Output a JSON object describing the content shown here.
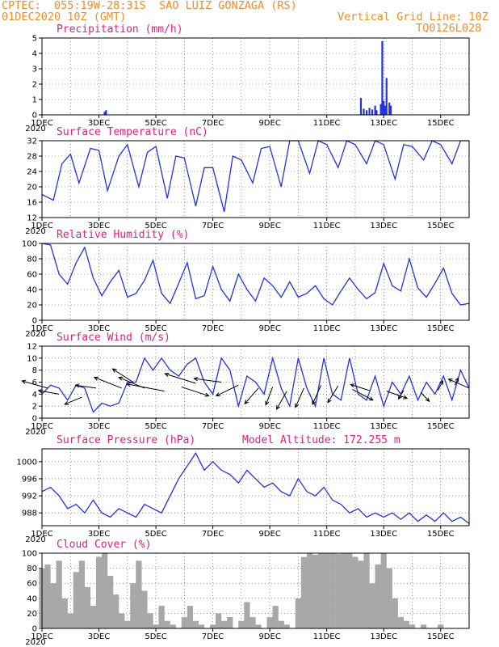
{
  "header": {
    "line1_left": "CPTEC:  055:19W-28:31S  SAO LUIZ GONZAGA (RS)",
    "line2_left": "01DEC2020 10Z (GMT)",
    "line2_right": "Vertical Grid Line: 10Z",
    "line3_right": "TQ0126L028"
  },
  "x_axis": {
    "ticks": [
      "1DEC",
      "3DEC",
      "5DEC",
      "7DEC",
      "9DEC",
      "11DEC",
      "13DEC",
      "15DEC"
    ],
    "year_label": "2020"
  },
  "colors": {
    "series": "#2233dd",
    "title": "#e0207f",
    "header": "#f28c28",
    "cloud": "#a8a8a8",
    "arrow": "#000000"
  },
  "chart_data": [
    {
      "type": "bar",
      "title": "Precipitation (mm/h)",
      "ylim": [
        0,
        5
      ],
      "yticks": [
        0,
        1,
        2,
        3,
        4,
        5
      ],
      "x_unit": "days since 01DEC2020 10Z",
      "xlim": [
        0,
        15
      ],
      "x": [
        2.2,
        2.25,
        11.2,
        11.3,
        11.4,
        11.5,
        11.6,
        11.7,
        11.75,
        11.9,
        11.95,
        12.0,
        12.05,
        12.1,
        12.2,
        12.25
      ],
      "values": [
        0.2,
        0.3,
        1.1,
        0.4,
        0.3,
        0.45,
        0.35,
        0.6,
        0.3,
        0.7,
        4.8,
        0.9,
        0.6,
        2.4,
        0.8,
        0.6
      ]
    },
    {
      "type": "line",
      "title": "Surface Temperature (nC)",
      "ylim": [
        12,
        32
      ],
      "yticks": [
        12,
        16,
        20,
        24,
        28,
        32
      ],
      "xlim": [
        0,
        15
      ],
      "x": [
        0,
        0.4,
        0.7,
        1.0,
        1.3,
        1.7,
        2.0,
        2.3,
        2.7,
        3.0,
        3.4,
        3.7,
        4.0,
        4.4,
        4.7,
        5.0,
        5.4,
        5.7,
        6.0,
        6.4,
        6.7,
        7.0,
        7.4,
        7.7,
        8.0,
        8.4,
        8.7,
        9.0,
        9.4,
        9.7,
        10.0,
        10.4,
        10.7,
        11.0,
        11.4,
        11.7,
        12.0,
        12.4,
        12.7,
        13.0,
        13.4,
        13.7,
        14.0,
        14.4,
        14.7,
        15.0
      ],
      "values": [
        18,
        16.5,
        26,
        28.5,
        21,
        30,
        29.5,
        19,
        28,
        31,
        20,
        29,
        30.5,
        17,
        28,
        27.5,
        15,
        25,
        25,
        13.5,
        28,
        27,
        21,
        30,
        30.5,
        20,
        32,
        32,
        23.5,
        32,
        31,
        25,
        32,
        31,
        26,
        32,
        31,
        22,
        31,
        30.5,
        27,
        32,
        31,
        26,
        32,
        32
      ]
    },
    {
      "type": "line",
      "title": "Relative Humidity (%)",
      "ylim": [
        0,
        100
      ],
      "yticks": [
        0,
        20,
        40,
        60,
        80,
        100
      ],
      "xlim": [
        0,
        15
      ],
      "x": [
        0,
        0.3,
        0.6,
        0.9,
        1.2,
        1.5,
        1.8,
        2.1,
        2.4,
        2.7,
        3.0,
        3.3,
        3.6,
        3.9,
        4.2,
        4.5,
        4.8,
        5.1,
        5.4,
        5.7,
        6.0,
        6.3,
        6.6,
        6.9,
        7.2,
        7.5,
        7.8,
        8.1,
        8.4,
        8.7,
        9.0,
        9.3,
        9.6,
        9.9,
        10.2,
        10.5,
        10.8,
        11.1,
        11.4,
        11.7,
        12.0,
        12.3,
        12.6,
        12.9,
        13.2,
        13.5,
        13.8,
        14.1,
        14.4,
        14.7,
        15.0
      ],
      "values": [
        100,
        98,
        60,
        47,
        75,
        95,
        55,
        32,
        50,
        65,
        30,
        35,
        52,
        78,
        35,
        22,
        48,
        75,
        28,
        32,
        70,
        40,
        25,
        60,
        40,
        25,
        55,
        45,
        30,
        50,
        30,
        35,
        45,
        28,
        20,
        38,
        55,
        40,
        28,
        36,
        74,
        45,
        38,
        80,
        42,
        30,
        48,
        68,
        35,
        20,
        22
      ]
    },
    {
      "type": "line",
      "title": "Surface Wind (m/s)",
      "ylim": [
        0,
        12
      ],
      "yticks": [
        0,
        2,
        4,
        6,
        8,
        10,
        12
      ],
      "xlim": [
        0,
        15
      ],
      "x": [
        0,
        0.3,
        0.6,
        0.9,
        1.2,
        1.5,
        1.8,
        2.1,
        2.4,
        2.7,
        3.0,
        3.3,
        3.6,
        3.9,
        4.2,
        4.5,
        4.8,
        5.1,
        5.4,
        5.7,
        6.0,
        6.3,
        6.6,
        6.9,
        7.2,
        7.5,
        7.8,
        8.1,
        8.4,
        8.7,
        9.0,
        9.3,
        9.6,
        9.9,
        10.2,
        10.5,
        10.8,
        11.1,
        11.4,
        11.7,
        12.0,
        12.3,
        12.6,
        12.9,
        13.2,
        13.5,
        13.8,
        14.1,
        14.4,
        14.7,
        15.0
      ],
      "values": [
        4,
        5.5,
        5,
        3,
        5.5,
        5,
        1,
        2.5,
        2,
        2.5,
        6,
        6,
        10,
        8,
        10,
        8,
        7,
        9,
        10,
        6,
        4,
        10,
        8,
        2,
        7,
        6,
        4,
        10,
        5,
        2,
        10,
        5,
        2,
        10,
        4,
        3,
        10,
        4,
        3,
        7,
        2,
        6,
        4,
        7,
        3,
        6,
        4,
        7,
        3,
        8,
        5
      ],
      "arrows": [
        [
          0.2,
          5,
          -1.5,
          1.2
        ],
        [
          0.6,
          4,
          -1.2,
          0.6
        ],
        [
          1.4,
          3.5,
          -1.0,
          -1.2
        ],
        [
          1.9,
          5,
          -1.2,
          0.5
        ],
        [
          2.8,
          5,
          -1.6,
          1.8
        ],
        [
          3.2,
          6,
          -1.2,
          2.2
        ],
        [
          3.6,
          5,
          -1.5,
          1.8
        ],
        [
          4.3,
          4.5,
          -2.2,
          1.2
        ],
        [
          4.9,
          5.2,
          1.6,
          -1.5
        ],
        [
          5.4,
          5.8,
          -1.8,
          1.6
        ],
        [
          6.3,
          6,
          -1.6,
          0.6
        ],
        [
          6.9,
          5.5,
          -1.3,
          -1.8
        ],
        [
          7.6,
          5,
          -0.8,
          -2.6
        ],
        [
          8.1,
          5.2,
          -0.4,
          -3
        ],
        [
          8.6,
          4.5,
          -0.6,
          -3
        ],
        [
          9.2,
          5,
          -0.5,
          -3.2
        ],
        [
          9.8,
          5.5,
          -0.5,
          -3.2
        ],
        [
          10.4,
          5.4,
          -0.6,
          -2.8
        ],
        [
          10.9,
          4.8,
          1.2,
          -1.8
        ],
        [
          11.5,
          4.6,
          -1.1,
          1.0
        ],
        [
          12.1,
          4.5,
          1.2,
          -1.2
        ],
        [
          12.7,
          4.6,
          -0.3,
          -1.4
        ],
        [
          13.3,
          4.3,
          0.5,
          -1.5
        ],
        [
          13.9,
          4.6,
          0.3,
          1.6
        ],
        [
          14.5,
          5.5,
          0.2,
          1.2
        ],
        [
          15,
          5,
          -1.2,
          1.5
        ]
      ]
    },
    {
      "type": "line",
      "title": "Surface Pressure (hPa)",
      "annotation": "Model Altitude: 172.255 m",
      "ylim": [
        985,
        1003
      ],
      "yticks": [
        988,
        992,
        996,
        1000
      ],
      "xlim": [
        0,
        15
      ],
      "x": [
        0,
        0.3,
        0.6,
        0.9,
        1.2,
        1.5,
        1.8,
        2.1,
        2.4,
        2.7,
        3.0,
        3.3,
        3.6,
        3.9,
        4.2,
        4.5,
        4.8,
        5.1,
        5.4,
        5.7,
        6.0,
        6.3,
        6.6,
        6.9,
        7.2,
        7.5,
        7.8,
        8.1,
        8.4,
        8.7,
        9.0,
        9.3,
        9.6,
        9.9,
        10.2,
        10.5,
        10.8,
        11.1,
        11.4,
        11.7,
        12.0,
        12.3,
        12.6,
        12.9,
        13.2,
        13.5,
        13.8,
        14.1,
        14.4,
        14.7,
        15.0
      ],
      "values": [
        993,
        994,
        992,
        989,
        990,
        988,
        991,
        988,
        987,
        989,
        988,
        987,
        990,
        989,
        988,
        992,
        996,
        999,
        1002,
        998,
        1000,
        998,
        997,
        995,
        998,
        996,
        994,
        995,
        993,
        992,
        996,
        993,
        992,
        994,
        991,
        990,
        988,
        989,
        987,
        988,
        987,
        988,
        986.5,
        988,
        986,
        987.5,
        986,
        988,
        986,
        987,
        985.5
      ]
    },
    {
      "type": "bar",
      "title": "Cloud Cover (%)",
      "ylim": [
        0,
        100
      ],
      "yticks": [
        0,
        20,
        40,
        60,
        80,
        100
      ],
      "xlim": [
        0,
        15
      ],
      "x": [
        0,
        0.2,
        0.4,
        0.6,
        0.8,
        1.0,
        1.2,
        1.4,
        1.6,
        1.8,
        2.0,
        2.2,
        2.4,
        2.6,
        2.8,
        3.0,
        3.2,
        3.4,
        3.6,
        3.8,
        4.0,
        4.2,
        4.4,
        4.6,
        4.8,
        5.0,
        5.2,
        5.4,
        5.6,
        5.8,
        6.0,
        6.2,
        6.4,
        6.6,
        6.8,
        7.0,
        7.2,
        7.4,
        7.6,
        7.8,
        8.0,
        8.2,
        8.4,
        8.6,
        8.8,
        9.0,
        9.2,
        9.4,
        9.6,
        9.8,
        10.0,
        10.2,
        10.4,
        10.6,
        10.8,
        11.0,
        11.2,
        11.4,
        11.6,
        11.8,
        12.0,
        12.2,
        12.4,
        12.6,
        12.8,
        13.0,
        13.2,
        13.4,
        13.6,
        13.8,
        14.0,
        14.2,
        14.4,
        14.6,
        14.8,
        15.0
      ],
      "values": [
        80,
        85,
        60,
        90,
        40,
        20,
        75,
        90,
        55,
        30,
        95,
        100,
        70,
        45,
        20,
        10,
        60,
        90,
        50,
        20,
        5,
        30,
        10,
        5,
        0,
        15,
        30,
        10,
        5,
        0,
        5,
        20,
        10,
        15,
        0,
        10,
        35,
        15,
        5,
        0,
        15,
        30,
        10,
        5,
        0,
        40,
        95,
        100,
        98,
        100,
        100,
        100,
        99,
        100,
        100,
        95,
        90,
        100,
        60,
        85,
        100,
        80,
        40,
        15,
        10,
        5,
        0,
        5,
        0,
        0,
        5,
        0,
        0,
        0,
        0,
        0
      ]
    }
  ]
}
